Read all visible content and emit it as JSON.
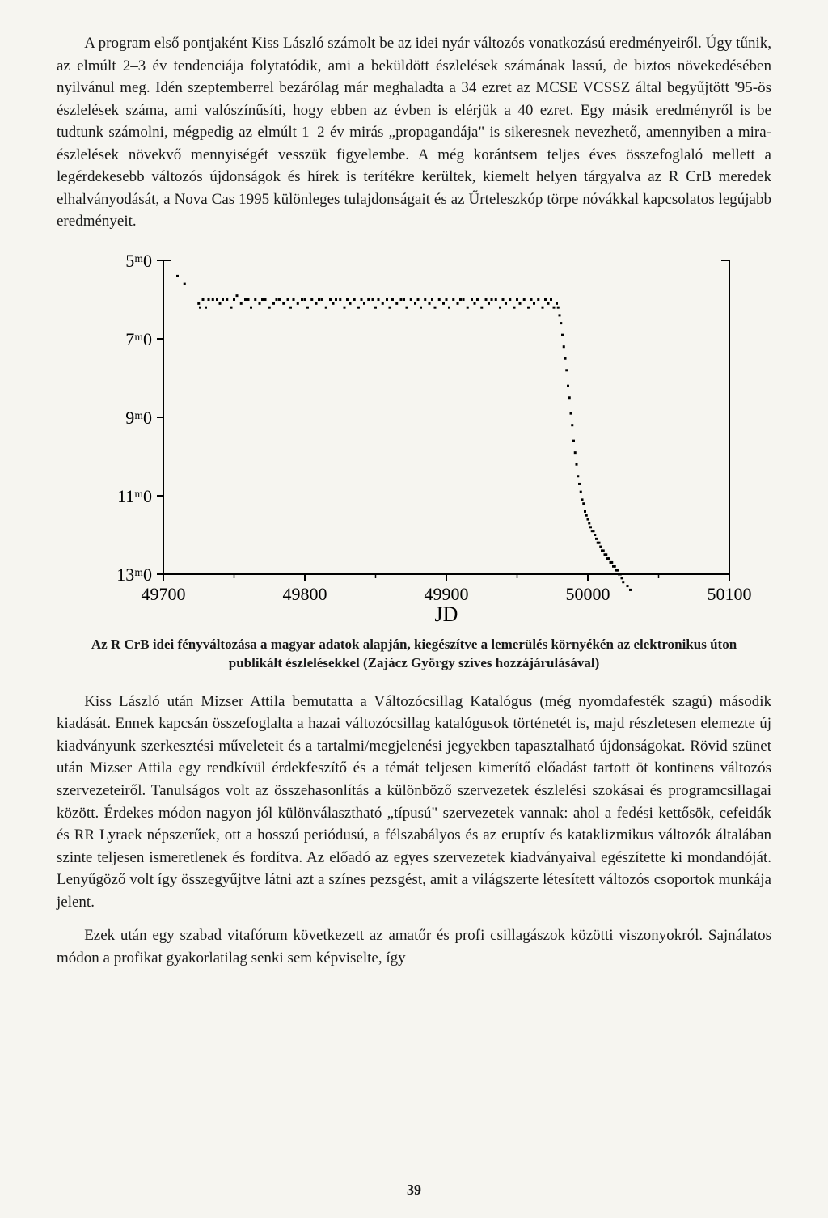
{
  "paragraphs": {
    "p1": "A program első pontjaként Kiss László számolt be az idei nyár változós vonatkozású eredményeiről. Úgy tűnik, az elmúlt 2–3 év tendenciája folytatódik, ami a beküldött észlelések számának lassú, de biztos növekedésében nyilvánul meg. Idén szeptemberrel bezárólag már meghaladta a 34 ezret az MCSE VCSSZ által begyűjtött '95-ös észlelések száma, ami valószínűsíti, hogy ebben az évben is elérjük a 40 ezret. Egy másik eredményről is be tudtunk számolni, mégpedig az elmúlt 1–2 év mirás „propagandája\" is sikeresnek nevezhető, amennyiben a mira-észlelések növekvő mennyiségét vesszük figyelembe. A még korántsem teljes éves összefoglaló mellett a legérdekesebb változós újdonságok és hírek is terítékre kerültek, kiemelt helyen tárgyalva az R CrB meredek elhalványodását, a Nova Cas 1995 különleges tulajdonságait és az Űrteleszkóp törpe nóvákkal kapcsolatos legújabb eredményeit.",
    "p2": "Kiss László után Mizser Attila bemutatta a Változócsillag Katalógus (még nyomdafesték szagú) második kiadását. Ennek kapcsán összefoglalta a hazai változócsillag katalógusok történetét is, majd részletesen elemezte új kiadványunk szerkesztési műveleteit és a tartalmi/megjelenési jegyekben tapasztalható újdonságokat. Rövid szünet után Mizser Attila egy rendkívül érdekfeszítő és a témát teljesen kimerítő előadást tartott öt kontinens változós szervezeteiről. Tanulságos volt az összehasonlítás a különböző szervezetek észlelési szokásai és programcsillagai között. Érdekes módon nagyon jól különválasztható „típusú\" szervezetek vannak: ahol a fedési kettősök, cefeidák és RR Lyraek népszerűek, ott a hosszú periódusú, a félszabályos és az eruptív és kataklizmikus változók általában szinte teljesen ismeretlenek és fordítva. Az előadó az egyes szervezetek kiadványaival egészítette ki mondandóját. Lenyűgöző volt így összegyűjtve látni azt a színes pezsgést, amit a világszerte létesített változós csoportok munkája jelent.",
    "p3": "Ezek után egy szabad vitafórum következett az amatőr és profi csillagászok közötti viszonyokról. Sajnálatos módon a profikat gyakorlatilag senki sem képviselte, így"
  },
  "chart": {
    "type": "scatter",
    "caption": "Az R CrB idei fényváltozása a magyar adatok alapján, kiegészítve a lemerülés környékén az elektronikus úton publikált észlelésekkel (Zajácz György szíves hozzájárulásával)",
    "xlabel": "JD",
    "xlim": [
      49700,
      50100
    ],
    "xticks": [
      49700,
      49800,
      49900,
      50000,
      50100
    ],
    "ylim_top": 5.0,
    "ylim_bottom": 13.0,
    "yticks": [
      5.0,
      7.0,
      9.0,
      11.0,
      13.0
    ],
    "ytick_labels": [
      "5ᵐ0",
      "7ᵐ0",
      "9ᵐ0",
      "11ᵐ0",
      "13ᵐ0"
    ],
    "axis_color": "#000000",
    "point_color": "#000000",
    "background_color": "#f6f5f0",
    "point_size": 3,
    "axis_fontsize": 22,
    "label_fontsize": 26,
    "series": [
      {
        "jd": 49710,
        "mag": 5.4
      },
      {
        "jd": 49715,
        "mag": 5.6
      },
      {
        "jd": 49725,
        "mag": 6.1
      },
      {
        "jd": 49726,
        "mag": 6.2
      },
      {
        "jd": 49728,
        "mag": 6.0
      },
      {
        "jd": 49730,
        "mag": 6.2
      },
      {
        "jd": 49732,
        "mag": 6.0
      },
      {
        "jd": 49735,
        "mag": 6.0
      },
      {
        "jd": 49738,
        "mag": 6.0
      },
      {
        "jd": 49740,
        "mag": 6.1
      },
      {
        "jd": 49742,
        "mag": 6.0
      },
      {
        "jd": 49745,
        "mag": 6.0
      },
      {
        "jd": 49748,
        "mag": 6.2
      },
      {
        "jd": 49750,
        "mag": 6.0
      },
      {
        "jd": 49752,
        "mag": 5.9
      },
      {
        "jd": 49755,
        "mag": 6.1
      },
      {
        "jd": 49758,
        "mag": 6.0
      },
      {
        "jd": 49760,
        "mag": 6.0
      },
      {
        "jd": 49762,
        "mag": 6.2
      },
      {
        "jd": 49765,
        "mag": 6.0
      },
      {
        "jd": 49768,
        "mag": 6.1
      },
      {
        "jd": 49770,
        "mag": 6.0
      },
      {
        "jd": 49772,
        "mag": 6.0
      },
      {
        "jd": 49775,
        "mag": 6.2
      },
      {
        "jd": 49778,
        "mag": 6.1
      },
      {
        "jd": 49780,
        "mag": 6.0
      },
      {
        "jd": 49782,
        "mag": 6.0
      },
      {
        "jd": 49785,
        "mag": 6.1
      },
      {
        "jd": 49788,
        "mag": 6.0
      },
      {
        "jd": 49790,
        "mag": 6.2
      },
      {
        "jd": 49792,
        "mag": 6.0
      },
      {
        "jd": 49795,
        "mag": 6.1
      },
      {
        "jd": 49798,
        "mag": 6.0
      },
      {
        "jd": 49800,
        "mag": 6.0
      },
      {
        "jd": 49802,
        "mag": 6.2
      },
      {
        "jd": 49805,
        "mag": 6.0
      },
      {
        "jd": 49808,
        "mag": 6.1
      },
      {
        "jd": 49810,
        "mag": 6.0
      },
      {
        "jd": 49812,
        "mag": 6.0
      },
      {
        "jd": 49815,
        "mag": 6.2
      },
      {
        "jd": 49818,
        "mag": 6.0
      },
      {
        "jd": 49820,
        "mag": 6.1
      },
      {
        "jd": 49822,
        "mag": 6.0
      },
      {
        "jd": 49825,
        "mag": 6.0
      },
      {
        "jd": 49828,
        "mag": 6.2
      },
      {
        "jd": 49830,
        "mag": 6.0
      },
      {
        "jd": 49832,
        "mag": 6.1
      },
      {
        "jd": 49835,
        "mag": 6.0
      },
      {
        "jd": 49838,
        "mag": 6.2
      },
      {
        "jd": 49840,
        "mag": 6.0
      },
      {
        "jd": 49842,
        "mag": 6.1
      },
      {
        "jd": 49845,
        "mag": 6.0
      },
      {
        "jd": 49848,
        "mag": 6.0
      },
      {
        "jd": 49850,
        "mag": 6.2
      },
      {
        "jd": 49852,
        "mag": 6.0
      },
      {
        "jd": 49855,
        "mag": 6.1
      },
      {
        "jd": 49858,
        "mag": 6.0
      },
      {
        "jd": 49860,
        "mag": 6.2
      },
      {
        "jd": 49862,
        "mag": 6.0
      },
      {
        "jd": 49865,
        "mag": 6.1
      },
      {
        "jd": 49868,
        "mag": 6.0
      },
      {
        "jd": 49870,
        "mag": 6.0
      },
      {
        "jd": 49872,
        "mag": 6.2
      },
      {
        "jd": 49875,
        "mag": 6.0
      },
      {
        "jd": 49878,
        "mag": 6.1
      },
      {
        "jd": 49880,
        "mag": 6.0
      },
      {
        "jd": 49882,
        "mag": 6.2
      },
      {
        "jd": 49885,
        "mag": 6.0
      },
      {
        "jd": 49888,
        "mag": 6.1
      },
      {
        "jd": 49890,
        "mag": 6.0
      },
      {
        "jd": 49892,
        "mag": 6.2
      },
      {
        "jd": 49895,
        "mag": 6.0
      },
      {
        "jd": 49898,
        "mag": 6.1
      },
      {
        "jd": 49900,
        "mag": 6.0
      },
      {
        "jd": 49902,
        "mag": 6.2
      },
      {
        "jd": 49905,
        "mag": 6.0
      },
      {
        "jd": 49908,
        "mag": 6.1
      },
      {
        "jd": 49910,
        "mag": 6.0
      },
      {
        "jd": 49912,
        "mag": 6.0
      },
      {
        "jd": 49915,
        "mag": 6.2
      },
      {
        "jd": 49918,
        "mag": 6.0
      },
      {
        "jd": 49920,
        "mag": 6.1
      },
      {
        "jd": 49922,
        "mag": 6.0
      },
      {
        "jd": 49925,
        "mag": 6.2
      },
      {
        "jd": 49928,
        "mag": 6.0
      },
      {
        "jd": 49930,
        "mag": 6.1
      },
      {
        "jd": 49932,
        "mag": 6.0
      },
      {
        "jd": 49935,
        "mag": 6.0
      },
      {
        "jd": 49938,
        "mag": 6.2
      },
      {
        "jd": 49940,
        "mag": 6.0
      },
      {
        "jd": 49942,
        "mag": 6.1
      },
      {
        "jd": 49945,
        "mag": 6.0
      },
      {
        "jd": 49948,
        "mag": 6.2
      },
      {
        "jd": 49950,
        "mag": 6.0
      },
      {
        "jd": 49952,
        "mag": 6.1
      },
      {
        "jd": 49955,
        "mag": 6.0
      },
      {
        "jd": 49958,
        "mag": 6.2
      },
      {
        "jd": 49960,
        "mag": 6.0
      },
      {
        "jd": 49962,
        "mag": 6.1
      },
      {
        "jd": 49965,
        "mag": 6.0
      },
      {
        "jd": 49968,
        "mag": 6.2
      },
      {
        "jd": 49970,
        "mag": 6.0
      },
      {
        "jd": 49972,
        "mag": 6.1
      },
      {
        "jd": 49974,
        "mag": 6.0
      },
      {
        "jd": 49976,
        "mag": 6.2
      },
      {
        "jd": 49978,
        "mag": 6.1
      },
      {
        "jd": 49979,
        "mag": 6.2
      },
      {
        "jd": 49980,
        "mag": 6.4
      },
      {
        "jd": 49981,
        "mag": 6.6
      },
      {
        "jd": 49982,
        "mag": 6.9
      },
      {
        "jd": 49983,
        "mag": 7.2
      },
      {
        "jd": 49984,
        "mag": 7.5
      },
      {
        "jd": 49985,
        "mag": 7.8
      },
      {
        "jd": 49986,
        "mag": 8.2
      },
      {
        "jd": 49987,
        "mag": 8.5
      },
      {
        "jd": 49988,
        "mag": 8.9
      },
      {
        "jd": 49989,
        "mag": 9.2
      },
      {
        "jd": 49990,
        "mag": 9.6
      },
      {
        "jd": 49991,
        "mag": 9.9
      },
      {
        "jd": 49992,
        "mag": 10.2
      },
      {
        "jd": 49993,
        "mag": 10.5
      },
      {
        "jd": 49994,
        "mag": 10.7
      },
      {
        "jd": 49995,
        "mag": 10.9
      },
      {
        "jd": 49996,
        "mag": 11.1
      },
      {
        "jd": 49997,
        "mag": 11.2
      },
      {
        "jd": 49998,
        "mag": 11.4
      },
      {
        "jd": 49999,
        "mag": 11.5
      },
      {
        "jd": 50000,
        "mag": 11.6
      },
      {
        "jd": 50001,
        "mag": 11.7
      },
      {
        "jd": 50002,
        "mag": 11.8
      },
      {
        "jd": 50003,
        "mag": 11.9
      },
      {
        "jd": 50004,
        "mag": 11.9
      },
      {
        "jd": 50005,
        "mag": 12.0
      },
      {
        "jd": 50006,
        "mag": 12.1
      },
      {
        "jd": 50007,
        "mag": 12.2
      },
      {
        "jd": 50008,
        "mag": 12.2
      },
      {
        "jd": 50009,
        "mag": 12.3
      },
      {
        "jd": 50010,
        "mag": 12.4
      },
      {
        "jd": 50011,
        "mag": 12.4
      },
      {
        "jd": 50012,
        "mag": 12.5
      },
      {
        "jd": 50013,
        "mag": 12.5
      },
      {
        "jd": 50014,
        "mag": 12.6
      },
      {
        "jd": 50015,
        "mag": 12.6
      },
      {
        "jd": 50016,
        "mag": 12.7
      },
      {
        "jd": 50017,
        "mag": 12.7
      },
      {
        "jd": 50018,
        "mag": 12.8
      },
      {
        "jd": 50019,
        "mag": 12.8
      },
      {
        "jd": 50020,
        "mag": 12.9
      },
      {
        "jd": 50021,
        "mag": 12.9
      },
      {
        "jd": 50022,
        "mag": 13.0
      },
      {
        "jd": 50023,
        "mag": 13.0
      },
      {
        "jd": 50024,
        "mag": 13.1
      },
      {
        "jd": 50025,
        "mag": 13.2
      },
      {
        "jd": 50028,
        "mag": 13.3
      },
      {
        "jd": 50030,
        "mag": 13.4
      }
    ]
  },
  "page_number": "39"
}
